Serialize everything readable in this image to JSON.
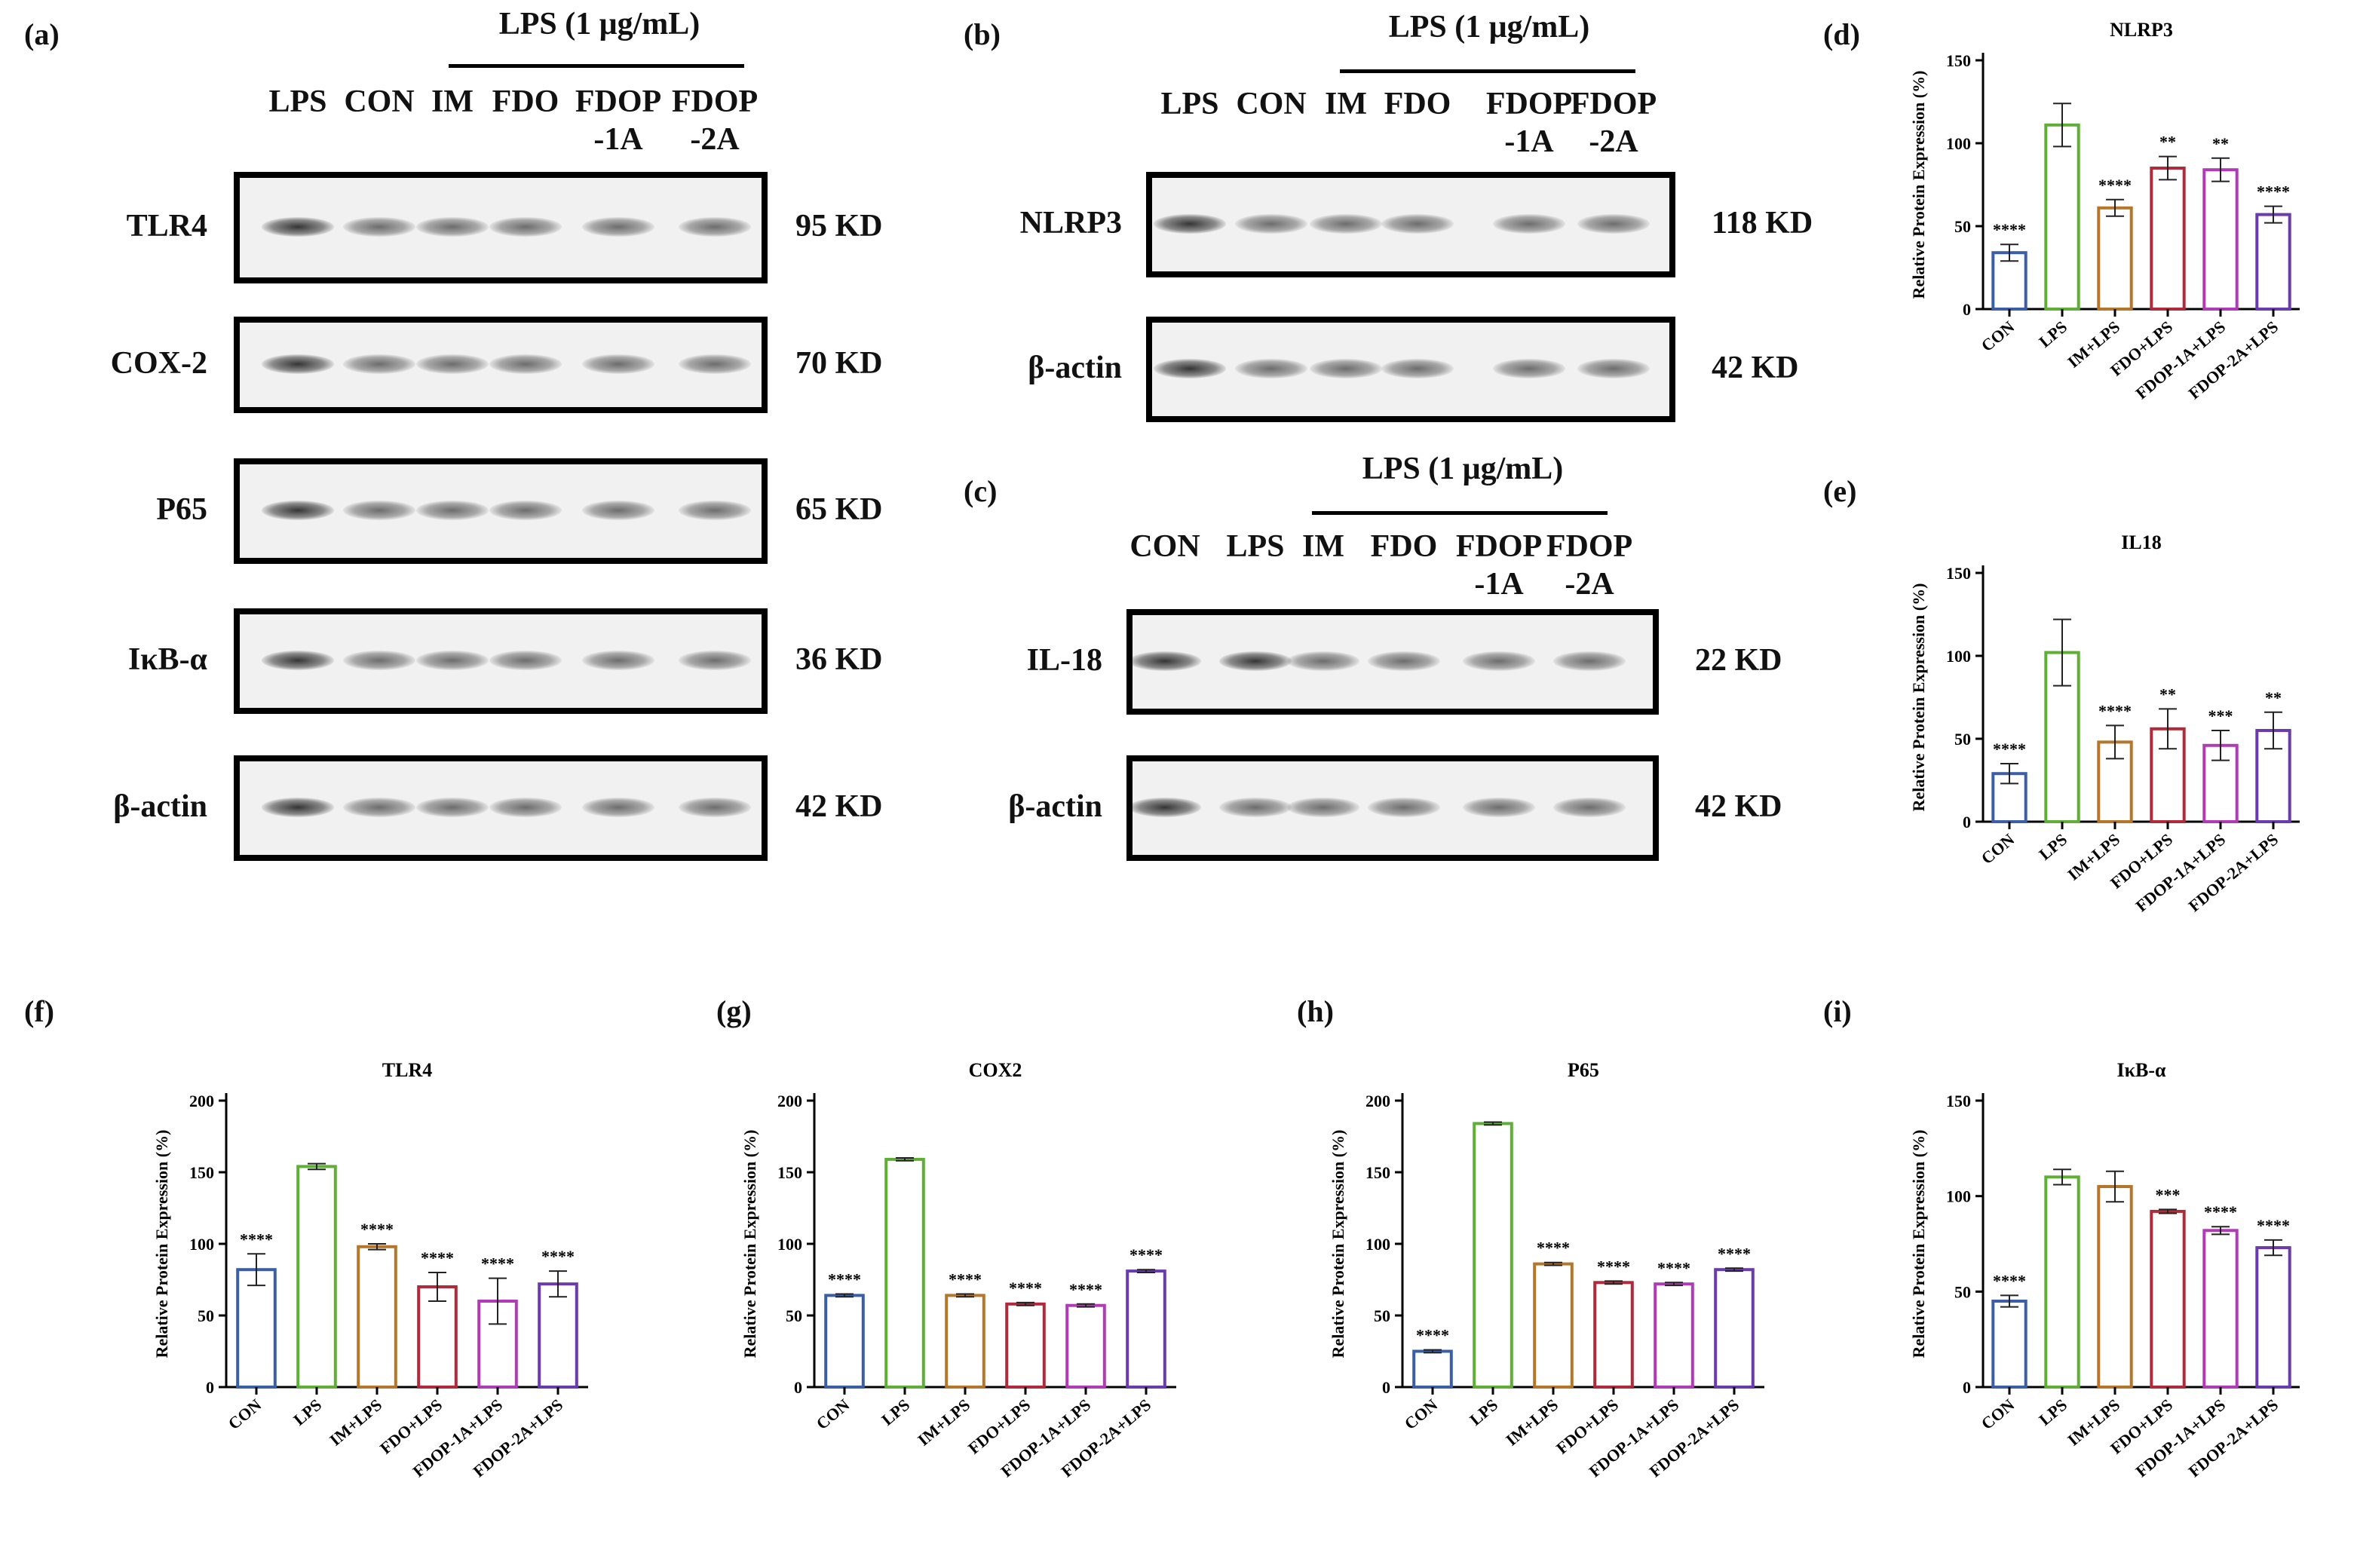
{
  "panels": {
    "a": {
      "letter": "(a)",
      "lps_header": "LPS (1 μg/mL)",
      "lanes": [
        "LPS",
        "CON",
        "IM",
        "FDO",
        "FDOP\n-1A",
        "FDOP\n-2A"
      ],
      "rows": [
        {
          "label": "TLR4",
          "kd": "95 KD"
        },
        {
          "label": "COX-2",
          "kd": "70 KD"
        },
        {
          "label": "P65",
          "kd": "65 KD"
        },
        {
          "label": "IκB-α",
          "kd": "36 KD"
        },
        {
          "label": "β-actin",
          "kd": "42 KD"
        }
      ]
    },
    "b": {
      "letter": "(b)",
      "lps_header": "LPS (1 μg/mL)",
      "lanes": [
        "LPS",
        "CON",
        "IM",
        "FDO",
        "FDOP\n-1A",
        "FDOP\n-2A"
      ],
      "rows": [
        {
          "label": "NLRP3",
          "kd": "118 KD"
        },
        {
          "label": "β-actin",
          "kd": "42 KD"
        }
      ]
    },
    "c": {
      "letter": "(c)",
      "lps_header": "LPS (1 μg/mL)",
      "lanes": [
        "CON",
        "LPS",
        "IM",
        "FDO",
        "FDOP\n-1A",
        "FDOP\n-2A"
      ],
      "rows": [
        {
          "label": "IL-18",
          "kd": "22 KD"
        },
        {
          "label": "β-actin",
          "kd": "42 KD"
        }
      ]
    },
    "d_letter": "(d)",
    "e_letter": "(e)",
    "f_letter": "(f)",
    "g_letter": "(g)",
    "h_letter": "(h)",
    "i_letter": "(i)"
  },
  "colors": {
    "CON": "#3a5fa8",
    "LPS": "#5fae36",
    "IM+LPS": "#b5762a",
    "FDO+LPS": "#b22a3a",
    "FDOP-1A+LPS": "#b23ab8",
    "FDOP-2A+LPS": "#6a3ab0"
  },
  "chart_data": [
    {
      "id": "d",
      "type": "bar",
      "title": "NLRP3",
      "ylabel": "Relative Protein Expression (%)",
      "categories": [
        "CON",
        "LPS",
        "IM+LPS",
        "FDO+LPS",
        "FDOP-1A+LPS",
        "FDOP-2A+LPS"
      ],
      "values": [
        34,
        111,
        61,
        85,
        84,
        57
      ],
      "errors": [
        5,
        13,
        5,
        7,
        7,
        5
      ],
      "significance": [
        "****",
        "",
        "****",
        "**",
        "**",
        "****"
      ],
      "ylim": [
        0,
        150
      ],
      "yticks": [
        0,
        50,
        100,
        150
      ]
    },
    {
      "id": "e",
      "type": "bar",
      "title": "IL18",
      "ylabel": "Relative Protein Expression (%)",
      "categories": [
        "CON",
        "LPS",
        "IM+LPS",
        "FDO+LPS",
        "FDOP-1A+LPS",
        "FDOP-2A+LPS"
      ],
      "values": [
        29,
        102,
        48,
        56,
        46,
        55
      ],
      "errors": [
        6,
        20,
        10,
        12,
        9,
        11
      ],
      "significance": [
        "****",
        "",
        "****",
        "**",
        "***",
        "**"
      ],
      "ylim": [
        0,
        150
      ],
      "yticks": [
        0,
        50,
        100,
        150
      ]
    },
    {
      "id": "f",
      "type": "bar",
      "title": "TLR4",
      "ylabel": "Relative Protein Expression (%)",
      "categories": [
        "CON",
        "LPS",
        "IM+LPS",
        "FDO+LPS",
        "FDOP-1A+LPS",
        "FDOP-2A+LPS"
      ],
      "values": [
        82,
        154,
        98,
        70,
        60,
        72
      ],
      "errors": [
        11,
        2,
        2,
        10,
        16,
        9
      ],
      "significance": [
        "****",
        "",
        "****",
        "****",
        "****",
        "****"
      ],
      "ylim": [
        0,
        200
      ],
      "yticks": [
        0,
        50,
        100,
        150,
        200
      ]
    },
    {
      "id": "g",
      "type": "bar",
      "title": "COX2",
      "ylabel": "Relative Protein Expression (%)",
      "categories": [
        "CON",
        "LPS",
        "IM+LPS",
        "FDO+LPS",
        "FDOP-1A+LPS",
        "FDOP-2A+LPS"
      ],
      "values": [
        64,
        159,
        64,
        58,
        57,
        81
      ],
      "errors": [
        1,
        1,
        1,
        1,
        1,
        1
      ],
      "significance": [
        "****",
        "",
        "****",
        "****",
        "****",
        "****"
      ],
      "ylim": [
        0,
        200
      ],
      "yticks": [
        0,
        50,
        100,
        150,
        200
      ]
    },
    {
      "id": "h",
      "type": "bar",
      "title": "P65",
      "ylabel": "Relative Protein Expression (%)",
      "categories": [
        "CON",
        "LPS",
        "IM+LPS",
        "FDO+LPS",
        "FDOP-1A+LPS",
        "FDOP-2A+LPS"
      ],
      "values": [
        25,
        184,
        86,
        73,
        72,
        82
      ],
      "errors": [
        1,
        1,
        1,
        1,
        1,
        1
      ],
      "significance": [
        "****",
        "",
        "****",
        "****",
        "****",
        "****"
      ],
      "ylim": [
        0,
        200
      ],
      "yticks": [
        0,
        50,
        100,
        150,
        200
      ]
    },
    {
      "id": "i",
      "type": "bar",
      "title": "IκB-α",
      "ylabel": "Relative Protein Expression (%)",
      "categories": [
        "CON",
        "LPS",
        "IM+LPS",
        "FDO+LPS",
        "FDOP-1A+LPS",
        "FDOP-2A+LPS"
      ],
      "values": [
        45,
        110,
        105,
        92,
        82,
        73
      ],
      "errors": [
        3,
        4,
        8,
        1,
        2,
        4
      ],
      "significance": [
        "****",
        "",
        "",
        "***",
        "****",
        "****"
      ],
      "ylim": [
        0,
        150
      ],
      "yticks": [
        0,
        50,
        100,
        150
      ]
    }
  ]
}
